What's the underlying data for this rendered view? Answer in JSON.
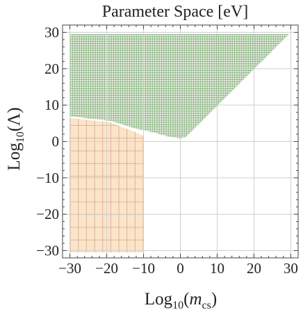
{
  "chart_data": {
    "type": "area",
    "title": "Parameter Space  [eV]",
    "xlabel": {
      "base": "Log",
      "sub": "10",
      "open": "(",
      "var": "m",
      "var_sub": "cs",
      "close": ")"
    },
    "ylabel": {
      "base": "Log",
      "sub": "10",
      "open": "(",
      "var": "Λ",
      "close": ")"
    },
    "xlim": [
      -32,
      32
    ],
    "ylim": [
      -32,
      32
    ],
    "grid": true,
    "xticks": [
      -30,
      -20,
      -10,
      0,
      10,
      20,
      30
    ],
    "yticks": [
      -30,
      -20,
      -10,
      0,
      10,
      20,
      30
    ],
    "xtick_labels": [
      "−30",
      "−20",
      "−10",
      "0",
      "10",
      "20",
      "30"
    ],
    "ytick_labels": [
      "−30",
      "−20",
      "−10",
      "0",
      "10",
      "20",
      "30"
    ],
    "regions": [
      {
        "id": "orange",
        "fill_color": "#fce4c8",
        "hatch_color": "#b07d6a",
        "hatch_step": [
          2.2,
          3.5
        ],
        "polygon": [
          [
            -30,
            -30.5
          ],
          [
            -10,
            -30.5
          ],
          [
            -10,
            1.5
          ],
          [
            -12,
            2.5
          ],
          [
            -19,
            5.2
          ],
          [
            -30,
            6.5
          ]
        ]
      },
      {
        "id": "green",
        "fill_color": "#e3eedc",
        "hatch_color": "#4f8a4a",
        "hatch_step": [
          0.62,
          0.62
        ],
        "polygon": [
          [
            -30,
            29.5
          ],
          [
            29.5,
            29.5
          ],
          [
            1.5,
            1.2
          ],
          [
            0,
            0.8
          ],
          [
            -3,
            1.3
          ],
          [
            -7,
            2.4
          ],
          [
            -10,
            3.1
          ],
          [
            -12,
            3.5
          ],
          [
            -19,
            5.7
          ],
          [
            -30,
            6.9
          ]
        ]
      }
    ]
  }
}
